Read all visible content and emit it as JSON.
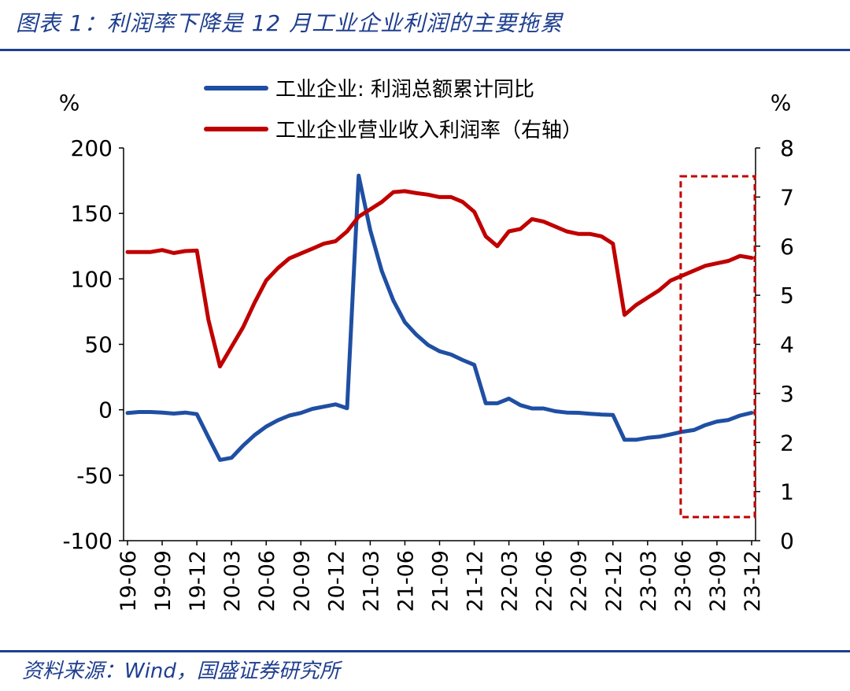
{
  "title": "图表 1：利润率下降是 12 月工业企业利润的主要拖累",
  "source": "资料来源：Wind，国盛证券研究所",
  "colors": {
    "brand": "#1f3f8f",
    "series_blue": "#1f4fa3",
    "series_red": "#c00000",
    "highlight_box": "#c00000"
  },
  "chart_data": {
    "type": "line",
    "title": "",
    "x": [
      "19-06",
      "19-07",
      "19-08",
      "19-09",
      "19-10",
      "19-11",
      "19-12",
      "20-01",
      "20-02",
      "20-03",
      "20-04",
      "20-05",
      "20-06",
      "20-07",
      "20-08",
      "20-09",
      "20-10",
      "20-11",
      "20-12",
      "21-01",
      "21-02",
      "21-03",
      "21-04",
      "21-05",
      "21-06",
      "21-07",
      "21-08",
      "21-09",
      "21-10",
      "21-11",
      "21-12",
      "22-01",
      "22-02",
      "22-03",
      "22-04",
      "22-05",
      "22-06",
      "22-07",
      "22-08",
      "22-09",
      "22-10",
      "22-11",
      "22-12",
      "23-01",
      "23-02",
      "23-03",
      "23-04",
      "23-05",
      "23-06",
      "23-07",
      "23-08",
      "23-09",
      "23-10",
      "23-11",
      "23-12"
    ],
    "x_tick_labels": [
      "19-06",
      "19-09",
      "19-12",
      "20-03",
      "20-06",
      "20-09",
      "20-12",
      "21-03",
      "21-06",
      "21-09",
      "21-12",
      "22-03",
      "22-06",
      "22-09",
      "22-12",
      "23-03",
      "23-06",
      "23-09",
      "23-12"
    ],
    "left_axis": {
      "unit": "%",
      "ylim": [
        -100,
        200
      ],
      "ticks": [
        "200",
        "150",
        "100",
        "50",
        "0",
        "-50",
        "-100"
      ]
    },
    "right_axis": {
      "unit": "%",
      "ylim": [
        0,
        8
      ],
      "ticks": [
        "8",
        "7",
        "6",
        "5",
        "4",
        "3",
        "2",
        "1",
        "0"
      ]
    },
    "series": [
      {
        "name": "工业企业: 利润总额累计同比",
        "axis": "left",
        "color": "#1f4fa3",
        "values": [
          -2.4,
          -1.7,
          -1.7,
          -2.1,
          -2.9,
          -2.1,
          -3.3,
          -21,
          -38.3,
          -36.7,
          -27.4,
          -19.3,
          -12.8,
          -8.1,
          -4.4,
          -2.4,
          0.7,
          2.4,
          4.1,
          1.2,
          178.9,
          137.3,
          106,
          83.4,
          66.9,
          57.3,
          49.5,
          44.7,
          42.2,
          38,
          34.3,
          5,
          5,
          8.5,
          3.5,
          1,
          1,
          -1.1,
          -2.1,
          -2.3,
          -3,
          -3.6,
          -4,
          -22.9,
          -22.9,
          -21.4,
          -20.6,
          -18.8,
          -16.8,
          -15.5,
          -11.7,
          -9,
          -7.8,
          -4.4,
          -2.3
        ]
      },
      {
        "name": "工业企业营业收入利润率（右轴）",
        "axis": "right",
        "color": "#c00000",
        "values": [
          5.88,
          5.88,
          5.88,
          5.92,
          5.86,
          5.9,
          5.91,
          4.5,
          3.55,
          3.95,
          4.35,
          4.85,
          5.3,
          5.55,
          5.75,
          5.85,
          5.95,
          6.05,
          6.1,
          6.3,
          6.6,
          6.75,
          6.9,
          7.1,
          7.12,
          7.08,
          7.05,
          7.0,
          7.0,
          6.9,
          6.7,
          6.2,
          6.0,
          6.3,
          6.35,
          6.55,
          6.5,
          6.4,
          6.3,
          6.25,
          6.25,
          6.2,
          6.05,
          4.6,
          4.8,
          4.95,
          5.1,
          5.3,
          5.4,
          5.5,
          5.6,
          5.65,
          5.7,
          5.8,
          5.76
        ]
      }
    ],
    "highlight": {
      "from": "23-06",
      "to": "23-12",
      "style": "dashed box"
    },
    "legend_position": "top-center",
    "grid": false
  }
}
